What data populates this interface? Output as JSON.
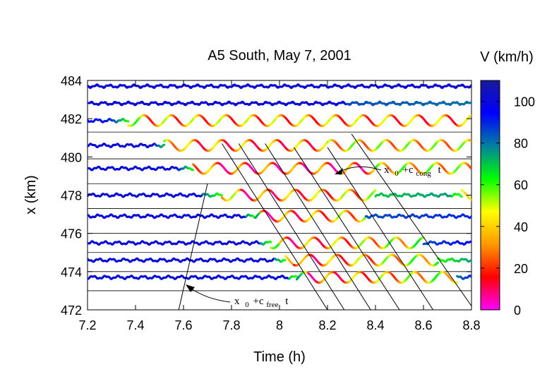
{
  "chart_data": {
    "type": "line",
    "title": "A5 South, May 7, 2001",
    "xlabel": "Time (h)",
    "ylabel": "x (km)",
    "xlim": [
      7.2,
      8.8
    ],
    "ylim": [
      472,
      484
    ],
    "x_ticks": [
      "7.2",
      "7.4",
      "7.6",
      "7.8",
      "8",
      "8.2",
      "8.4",
      "8.6",
      "8.8"
    ],
    "y_ticks": [
      "472",
      "474",
      "476",
      "478",
      "480",
      "482",
      "484"
    ],
    "colorbar": {
      "label": "V (km/h)",
      "range": [
        0,
        110
      ],
      "ticks": [
        "0",
        "20",
        "40",
        "60",
        "80",
        "100"
      ],
      "colors": [
        "#ff00ff",
        "#ff0000",
        "#ff9900",
        "#ffff00",
        "#00ff00",
        "#0080a0",
        "#0000ff",
        "#1a1a9a"
      ]
    },
    "detector_positions_km": [
      483.7,
      482.8,
      481.3,
      479.9,
      478.6,
      477.3,
      476.0,
      475.0,
      474.0,
      473.0
    ],
    "trajectories": [
      {
        "x0": 483.7,
        "segments": [
          [
            7.2,
            8.8,
            100,
            100
          ]
        ]
      },
      {
        "x0": 482.8,
        "segments": [
          [
            7.2,
            8.28,
            100,
            100
          ],
          [
            8.28,
            8.8,
            85,
            80
          ]
        ]
      },
      {
        "x0": 481.9,
        "segments": [
          [
            7.2,
            7.3,
            95,
            90
          ],
          [
            7.3,
            7.37,
            90,
            60
          ],
          [
            7.37,
            7.45,
            50,
            35
          ],
          [
            7.45,
            8.8,
            35,
            30
          ]
        ]
      },
      {
        "x0": 480.6,
        "segments": [
          [
            7.2,
            7.48,
            100,
            100
          ],
          [
            7.48,
            7.52,
            90,
            70
          ],
          [
            7.52,
            7.6,
            50,
            35
          ],
          [
            7.6,
            8.2,
            28,
            28
          ],
          [
            8.2,
            8.8,
            40,
            40
          ]
        ]
      },
      {
        "x0": 479.4,
        "segments": [
          [
            7.2,
            7.58,
            100,
            100
          ],
          [
            7.58,
            7.64,
            90,
            60
          ],
          [
            7.64,
            7.72,
            40,
            25
          ],
          [
            7.72,
            8.4,
            20,
            22
          ],
          [
            8.4,
            8.8,
            45,
            40
          ]
        ]
      },
      {
        "x0": 478.0,
        "segments": [
          [
            7.2,
            7.68,
            100,
            100
          ],
          [
            7.68,
            7.76,
            80,
            60
          ],
          [
            7.76,
            7.84,
            45,
            30
          ],
          [
            7.84,
            8.4,
            20,
            40
          ],
          [
            8.4,
            8.72,
            70,
            75
          ],
          [
            8.72,
            8.8,
            65,
            55
          ]
        ]
      },
      {
        "x0": 476.9,
        "segments": [
          [
            7.2,
            7.86,
            100,
            100
          ],
          [
            7.86,
            7.92,
            80,
            50
          ],
          [
            7.92,
            8.36,
            20,
            40
          ],
          [
            8.36,
            8.8,
            85,
            90
          ]
        ]
      },
      {
        "x0": 475.5,
        "segments": [
          [
            7.2,
            7.92,
            100,
            100
          ],
          [
            7.92,
            8.0,
            80,
            45
          ],
          [
            8.0,
            8.6,
            20,
            50
          ],
          [
            8.6,
            8.8,
            85,
            95
          ]
        ]
      },
      {
        "x0": 474.6,
        "segments": [
          [
            7.2,
            7.98,
            100,
            100
          ],
          [
            7.98,
            8.06,
            80,
            45
          ],
          [
            8.06,
            8.66,
            20,
            50
          ],
          [
            8.66,
            8.8,
            60,
            75
          ]
        ]
      },
      {
        "x0": 473.7,
        "segments": [
          [
            7.2,
            7.44,
            100,
            100
          ],
          [
            7.44,
            7.6,
            100,
            100
          ],
          [
            7.6,
            8.04,
            100,
            100
          ],
          [
            8.04,
            8.12,
            70,
            45
          ],
          [
            8.12,
            8.74,
            20,
            50
          ],
          [
            8.74,
            8.8,
            80,
            90
          ]
        ]
      }
    ],
    "wave_lines_cong": [
      {
        "t0": 7.76,
        "x0": 480.7,
        "t1": 8.2,
        "x1": 472.0
      },
      {
        "t0": 7.83,
        "x0": 480.7,
        "t1": 8.27,
        "x1": 472.0
      },
      {
        "t0": 7.94,
        "x0": 480.7,
        "t1": 8.38,
        "x1": 472.0
      },
      {
        "t0": 8.06,
        "x0": 480.5,
        "t1": 8.5,
        "x1": 472.0
      },
      {
        "t0": 8.2,
        "x0": 480.5,
        "t1": 8.64,
        "x1": 472.0
      },
      {
        "t0": 8.3,
        "x0": 481.2,
        "t1": 8.8,
        "x1": 472.2
      }
    ],
    "wave_line_free": {
      "t0": 7.58,
      "x0": 472.0,
      "t1": 7.7,
      "x1": 478.6
    },
    "annotations": [
      {
        "text_main": "x",
        "text_sub": "0",
        "text_rest": "+c",
        "text_rest_sub": "cong",
        "text_tail": "t"
      },
      {
        "text_main": "x",
        "text_sub": "0",
        "text_rest": "+c",
        "text_rest_sub": "free",
        "text_tail": "t"
      }
    ]
  }
}
